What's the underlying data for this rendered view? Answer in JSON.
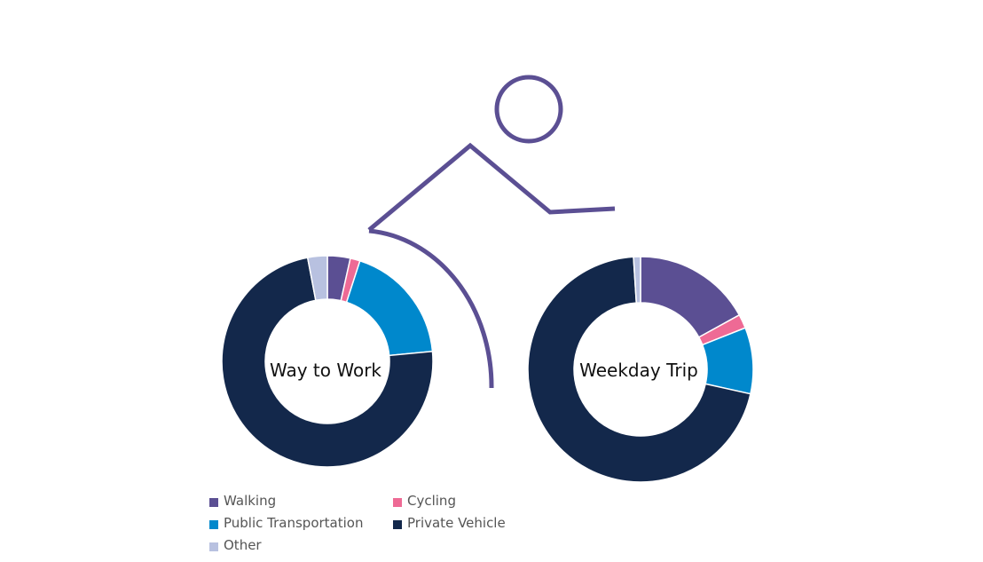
{
  "colors": {
    "bike_outline": "#5b4f93",
    "slice_border": "#ffffff"
  },
  "chart_data": {
    "type": "pie",
    "style": "donut",
    "legend_position": "bottom-left",
    "categories": [
      "Walking",
      "Cycling",
      "Public Transportation",
      "Private Vehicle",
      "Other"
    ],
    "colors": [
      "#5b4f93",
      "#ee6a95",
      "#0088cc",
      "#13284b",
      "#b8c1e0"
    ],
    "charts": [
      {
        "label": "Way to Work",
        "values": [
          3.5,
          1.5,
          18.5,
          73.5,
          3.0
        ]
      },
      {
        "label": "Weekday Trip",
        "values": [
          17.0,
          2.0,
          9.5,
          70.5,
          1.0
        ]
      }
    ]
  }
}
